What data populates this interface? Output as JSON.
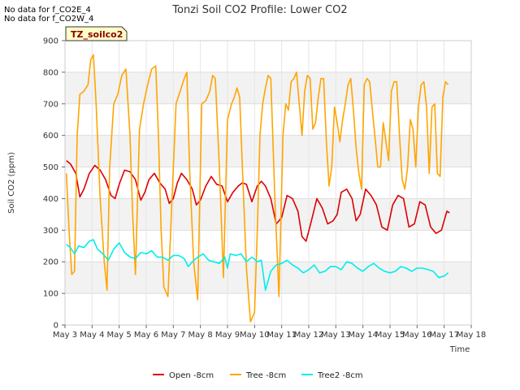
{
  "no_data_messages": [
    "No data for f_CO2E_4",
    "No data for f_CO2W_4"
  ],
  "chart_data": {
    "type": "line",
    "title": "Tonzi Soil CO2 Profile: Lower CO2",
    "xlabel": "Time",
    "ylabel": "Soil CO2 (ppm)",
    "site_label": "TZ_soilco2",
    "xlim": [
      3,
      18
    ],
    "ylim": [
      0,
      900
    ],
    "x_ticks": [
      3,
      4,
      5,
      6,
      7,
      8,
      9,
      10,
      11,
      12,
      13,
      14,
      15,
      16,
      17,
      18
    ],
    "x_tick_labels": [
      "May 3",
      "May 4",
      "May 5",
      "May 6",
      "May 7",
      "May 8",
      "May 9",
      "May 10",
      "May 11",
      "May 12",
      "May 13",
      "May 14",
      "May 15",
      "May 16",
      "May 17",
      "May 18"
    ],
    "y_ticks": [
      0,
      100,
      200,
      300,
      400,
      500,
      600,
      700,
      800,
      900
    ],
    "y_tick_labels": [
      "0",
      "100",
      "200",
      "300",
      "400",
      "500",
      "600",
      "700",
      "800",
      "900"
    ],
    "legend_position": "bottom-center",
    "series": [
      {
        "name": "Open -8cm",
        "color": "#dd0000",
        "x": [
          3.05,
          3.2,
          3.4,
          3.55,
          3.7,
          3.9,
          4.1,
          4.3,
          4.5,
          4.7,
          4.85,
          5.0,
          5.2,
          5.4,
          5.6,
          5.8,
          5.95,
          6.1,
          6.3,
          6.5,
          6.7,
          6.85,
          7.0,
          7.15,
          7.3,
          7.5,
          7.7,
          7.85,
          8.0,
          8.2,
          8.4,
          8.6,
          8.8,
          9.0,
          9.2,
          9.4,
          9.55,
          9.7,
          9.9,
          10.1,
          10.25,
          10.4,
          10.6,
          10.8,
          11.0,
          11.2,
          11.4,
          11.6,
          11.75,
          11.9,
          12.1,
          12.3,
          12.5,
          12.7,
          12.9,
          13.05,
          13.2,
          13.4,
          13.6,
          13.75,
          13.9,
          14.1,
          14.3,
          14.5,
          14.7,
          14.9,
          15.1,
          15.3,
          15.5,
          15.7,
          15.9,
          16.1,
          16.3,
          16.5,
          16.7,
          16.9,
          17.1,
          17.2
        ],
        "values": [
          520,
          510,
          480,
          405,
          430,
          480,
          505,
          490,
          460,
          410,
          400,
          445,
          490,
          485,
          460,
          395,
          420,
          460,
          480,
          450,
          430,
          385,
          400,
          450,
          480,
          460,
          430,
          380,
          395,
          440,
          470,
          445,
          440,
          390,
          420,
          440,
          450,
          445,
          390,
          440,
          455,
          440,
          400,
          320,
          340,
          410,
          400,
          360,
          280,
          265,
          330,
          400,
          370,
          320,
          330,
          350,
          420,
          430,
          400,
          330,
          350,
          430,
          410,
          380,
          310,
          300,
          380,
          410,
          400,
          310,
          320,
          390,
          380,
          310,
          290,
          300,
          360,
          355
        ]
      },
      {
        "name": "Tree -8cm",
        "color": "#ffa500",
        "x": [
          3.05,
          3.15,
          3.25,
          3.35,
          3.45,
          3.55,
          3.7,
          3.85,
          3.95,
          4.05,
          4.15,
          4.3,
          4.45,
          4.55,
          4.65,
          4.8,
          4.95,
          5.1,
          5.25,
          5.4,
          5.5,
          5.6,
          5.75,
          5.9,
          6.05,
          6.2,
          6.35,
          6.45,
          6.55,
          6.65,
          6.8,
          6.95,
          7.1,
          7.25,
          7.4,
          7.5,
          7.6,
          7.75,
          7.9,
          8.05,
          8.2,
          8.35,
          8.45,
          8.55,
          8.7,
          8.85,
          9.0,
          9.15,
          9.25,
          9.35,
          9.45,
          9.55,
          9.7,
          9.85,
          10.0,
          10.1,
          10.2,
          10.3,
          10.4,
          10.5,
          10.6,
          10.75,
          10.9,
          11.05,
          11.15,
          11.25,
          11.35,
          11.45,
          11.55,
          11.65,
          11.75,
          11.85,
          11.95,
          12.05,
          12.15,
          12.25,
          12.35,
          12.45,
          12.55,
          12.65,
          12.75,
          12.85,
          12.95,
          13.05,
          13.15,
          13.25,
          13.35,
          13.45,
          13.55,
          13.65,
          13.75,
          13.85,
          13.95,
          14.05,
          14.15,
          14.25,
          14.35,
          14.45,
          14.55,
          14.65,
          14.75,
          14.85,
          14.95,
          15.05,
          15.15,
          15.25,
          15.35,
          15.45,
          15.55,
          15.65,
          15.75,
          15.85,
          15.95,
          16.05,
          16.15,
          16.25,
          16.35,
          16.45,
          16.55,
          16.65,
          16.75,
          16.85,
          16.95,
          17.05,
          17.15
        ],
        "values": [
          480,
          300,
          160,
          170,
          600,
          730,
          740,
          760,
          840,
          855,
          700,
          400,
          200,
          110,
          500,
          700,
          730,
          790,
          810,
          600,
          350,
          160,
          620,
          700,
          760,
          810,
          820,
          600,
          300,
          120,
          90,
          400,
          700,
          740,
          780,
          800,
          500,
          200,
          80,
          700,
          710,
          740,
          790,
          780,
          500,
          150,
          650,
          700,
          720,
          750,
          720,
          500,
          180,
          10,
          40,
          300,
          600,
          700,
          750,
          790,
          780,
          400,
          90,
          600,
          700,
          680,
          770,
          780,
          800,
          700,
          600,
          740,
          790,
          780,
          620,
          640,
          720,
          780,
          780,
          580,
          440,
          500,
          690,
          640,
          580,
          650,
          700,
          760,
          780,
          680,
          560,
          480,
          430,
          760,
          780,
          770,
          680,
          590,
          500,
          500,
          640,
          580,
          520,
          740,
          770,
          770,
          600,
          460,
          430,
          500,
          650,
          620,
          500,
          690,
          760,
          770,
          690,
          480,
          690,
          700,
          480,
          470,
          720,
          770,
          760
        ]
      },
      {
        "name": "Tree2 -8cm",
        "color": "#00eeee",
        "x": [
          3.05,
          3.2,
          3.35,
          3.5,
          3.7,
          3.9,
          4.05,
          4.2,
          4.4,
          4.6,
          4.8,
          5.0,
          5.2,
          5.4,
          5.6,
          5.8,
          6.0,
          6.2,
          6.4,
          6.6,
          6.8,
          7.0,
          7.2,
          7.4,
          7.55,
          7.7,
          7.9,
          8.1,
          8.3,
          8.5,
          8.7,
          8.9,
          9.0,
          9.1,
          9.3,
          9.5,
          9.7,
          9.9,
          10.1,
          10.25,
          10.4,
          10.6,
          10.8,
          11.0,
          11.2,
          11.4,
          11.6,
          11.8,
          12.0,
          12.2,
          12.4,
          12.6,
          12.8,
          13.0,
          13.2,
          13.4,
          13.6,
          13.8,
          14.0,
          14.2,
          14.4,
          14.6,
          14.8,
          15.0,
          15.2,
          15.4,
          15.6,
          15.8,
          16.0,
          16.2,
          16.4,
          16.6,
          16.8,
          17.0,
          17.15
        ],
        "values": [
          255,
          245,
          225,
          250,
          245,
          265,
          270,
          240,
          225,
          205,
          240,
          260,
          230,
          215,
          210,
          230,
          225,
          235,
          215,
          215,
          205,
          220,
          220,
          210,
          185,
          200,
          215,
          225,
          205,
          200,
          195,
          215,
          180,
          225,
          220,
          225,
          200,
          215,
          200,
          205,
          110,
          170,
          190,
          195,
          205,
          190,
          180,
          165,
          175,
          190,
          165,
          170,
          185,
          185,
          175,
          200,
          195,
          180,
          170,
          185,
          195,
          180,
          170,
          165,
          170,
          185,
          180,
          170,
          180,
          180,
          175,
          170,
          150,
          155,
          165
        ]
      }
    ]
  }
}
